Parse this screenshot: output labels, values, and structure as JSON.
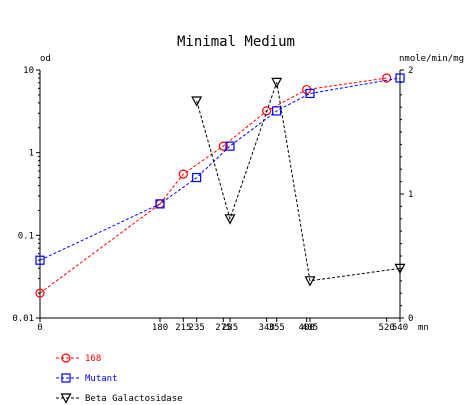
{
  "chart_data": {
    "type": "line",
    "title": "Minimal Medium",
    "left_axis": {
      "label": "od",
      "scale": "log",
      "ylim": [
        0.01,
        10
      ],
      "tick_labels": [
        "0.01",
        "0.1",
        "1",
        "10"
      ]
    },
    "right_axis": {
      "label": "nmole/min/mg",
      "scale": "linear",
      "ylim": [
        0,
        2
      ],
      "tick_labels": [
        "0",
        "1",
        "2"
      ]
    },
    "x_axis": {
      "label": "mn",
      "xlim": [
        0,
        540
      ],
      "ticks": [
        0,
        180,
        215,
        235,
        275,
        285,
        340,
        355,
        400,
        405,
        520,
        540
      ]
    },
    "grid": false,
    "legend_position": "bottom-left",
    "series": [
      {
        "name": "168",
        "axis": "left",
        "color": "#ff0000",
        "marker": "circle",
        "x": [
          0,
          180,
          215,
          275,
          340,
          400,
          520
        ],
        "y": [
          0.02,
          0.24,
          0.55,
          1.2,
          3.2,
          5.8,
          8.0
        ]
      },
      {
        "name": "Mutant",
        "axis": "left",
        "color": "#0000ff",
        "marker": "square",
        "x": [
          0,
          180,
          235,
          285,
          355,
          405,
          540
        ],
        "y": [
          0.05,
          0.24,
          0.5,
          1.2,
          3.2,
          5.2,
          8.0
        ]
      },
      {
        "name": "Beta Galactosidase",
        "axis": "right",
        "color": "#000000",
        "marker": "triangle-down",
        "x": [
          235,
          285,
          355,
          405,
          540
        ],
        "y": [
          1.75,
          0.8,
          1.9,
          0.3,
          0.4
        ]
      }
    ]
  }
}
